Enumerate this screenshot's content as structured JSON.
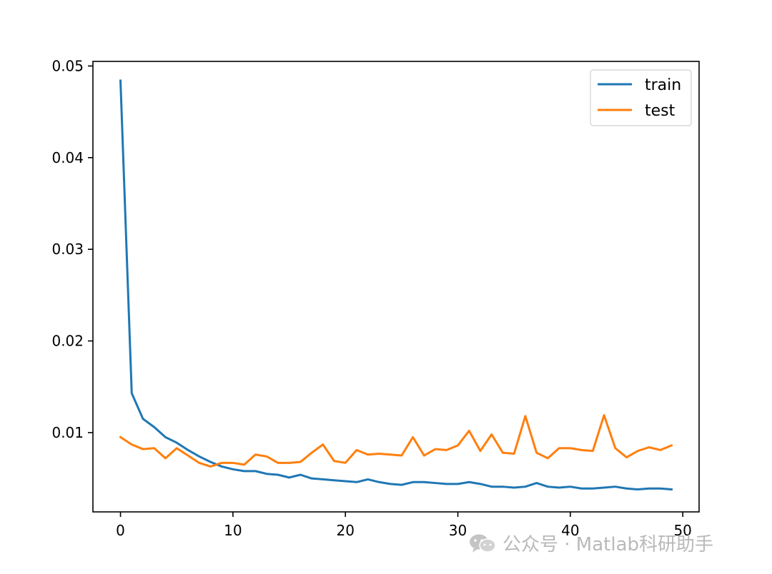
{
  "chart_data": {
    "type": "line",
    "title": "",
    "xlabel": "",
    "ylabel": "",
    "xlim": [
      -2.45,
      51.45
    ],
    "ylim": [
      0.00135,
      0.0505
    ],
    "xticks": [
      0,
      10,
      20,
      30,
      40,
      50
    ],
    "xtick_labels": [
      "0",
      "10",
      "20",
      "30",
      "40",
      "50"
    ],
    "yticks": [
      0.01,
      0.02,
      0.03,
      0.04,
      0.05
    ],
    "ytick_labels": [
      "0.01",
      "0.02",
      "0.03",
      "0.04",
      "0.05"
    ],
    "grid": false,
    "legend_position": "upper right",
    "x": [
      0,
      1,
      2,
      3,
      4,
      5,
      6,
      7,
      8,
      9,
      10,
      11,
      12,
      13,
      14,
      15,
      16,
      17,
      18,
      19,
      20,
      21,
      22,
      23,
      24,
      25,
      26,
      27,
      28,
      29,
      30,
      31,
      32,
      33,
      34,
      35,
      36,
      37,
      38,
      39,
      40,
      41,
      42,
      43,
      44,
      45,
      46,
      47,
      48,
      49
    ],
    "series": [
      {
        "name": "train",
        "color": "#1f77b4",
        "values": [
          0.0484,
          0.0143,
          0.0115,
          0.0106,
          0.0095,
          0.0089,
          0.0081,
          0.0074,
          0.0068,
          0.0063,
          0.006,
          0.0058,
          0.0058,
          0.0055,
          0.0054,
          0.0051,
          0.0054,
          0.005,
          0.0049,
          0.0048,
          0.0047,
          0.0046,
          0.0049,
          0.0046,
          0.0044,
          0.0043,
          0.0046,
          0.0046,
          0.0045,
          0.0044,
          0.0044,
          0.0046,
          0.0044,
          0.0041,
          0.0041,
          0.004,
          0.0041,
          0.0045,
          0.0041,
          0.004,
          0.0041,
          0.0039,
          0.0039,
          0.004,
          0.0041,
          0.0039,
          0.0038,
          0.0039,
          0.0039,
          0.0038
        ]
      },
      {
        "name": "test",
        "color": "#ff7f0e",
        "values": [
          0.0095,
          0.0087,
          0.0082,
          0.0083,
          0.0072,
          0.0083,
          0.0075,
          0.0067,
          0.0063,
          0.0067,
          0.0067,
          0.0065,
          0.0076,
          0.0074,
          0.0067,
          0.0067,
          0.0068,
          0.0078,
          0.0087,
          0.0069,
          0.0067,
          0.0081,
          0.0076,
          0.0077,
          0.0076,
          0.0075,
          0.0095,
          0.0075,
          0.0082,
          0.0081,
          0.0086,
          0.0102,
          0.008,
          0.0098,
          0.0078,
          0.0077,
          0.0118,
          0.0078,
          0.0072,
          0.0083,
          0.0083,
          0.0081,
          0.008,
          0.0119,
          0.0083,
          0.0073,
          0.008,
          0.0084,
          0.0081,
          0.0086
        ]
      }
    ]
  },
  "watermark": {
    "text": "公众号 · Matlab科研助手",
    "icon": "wechat-icon"
  }
}
